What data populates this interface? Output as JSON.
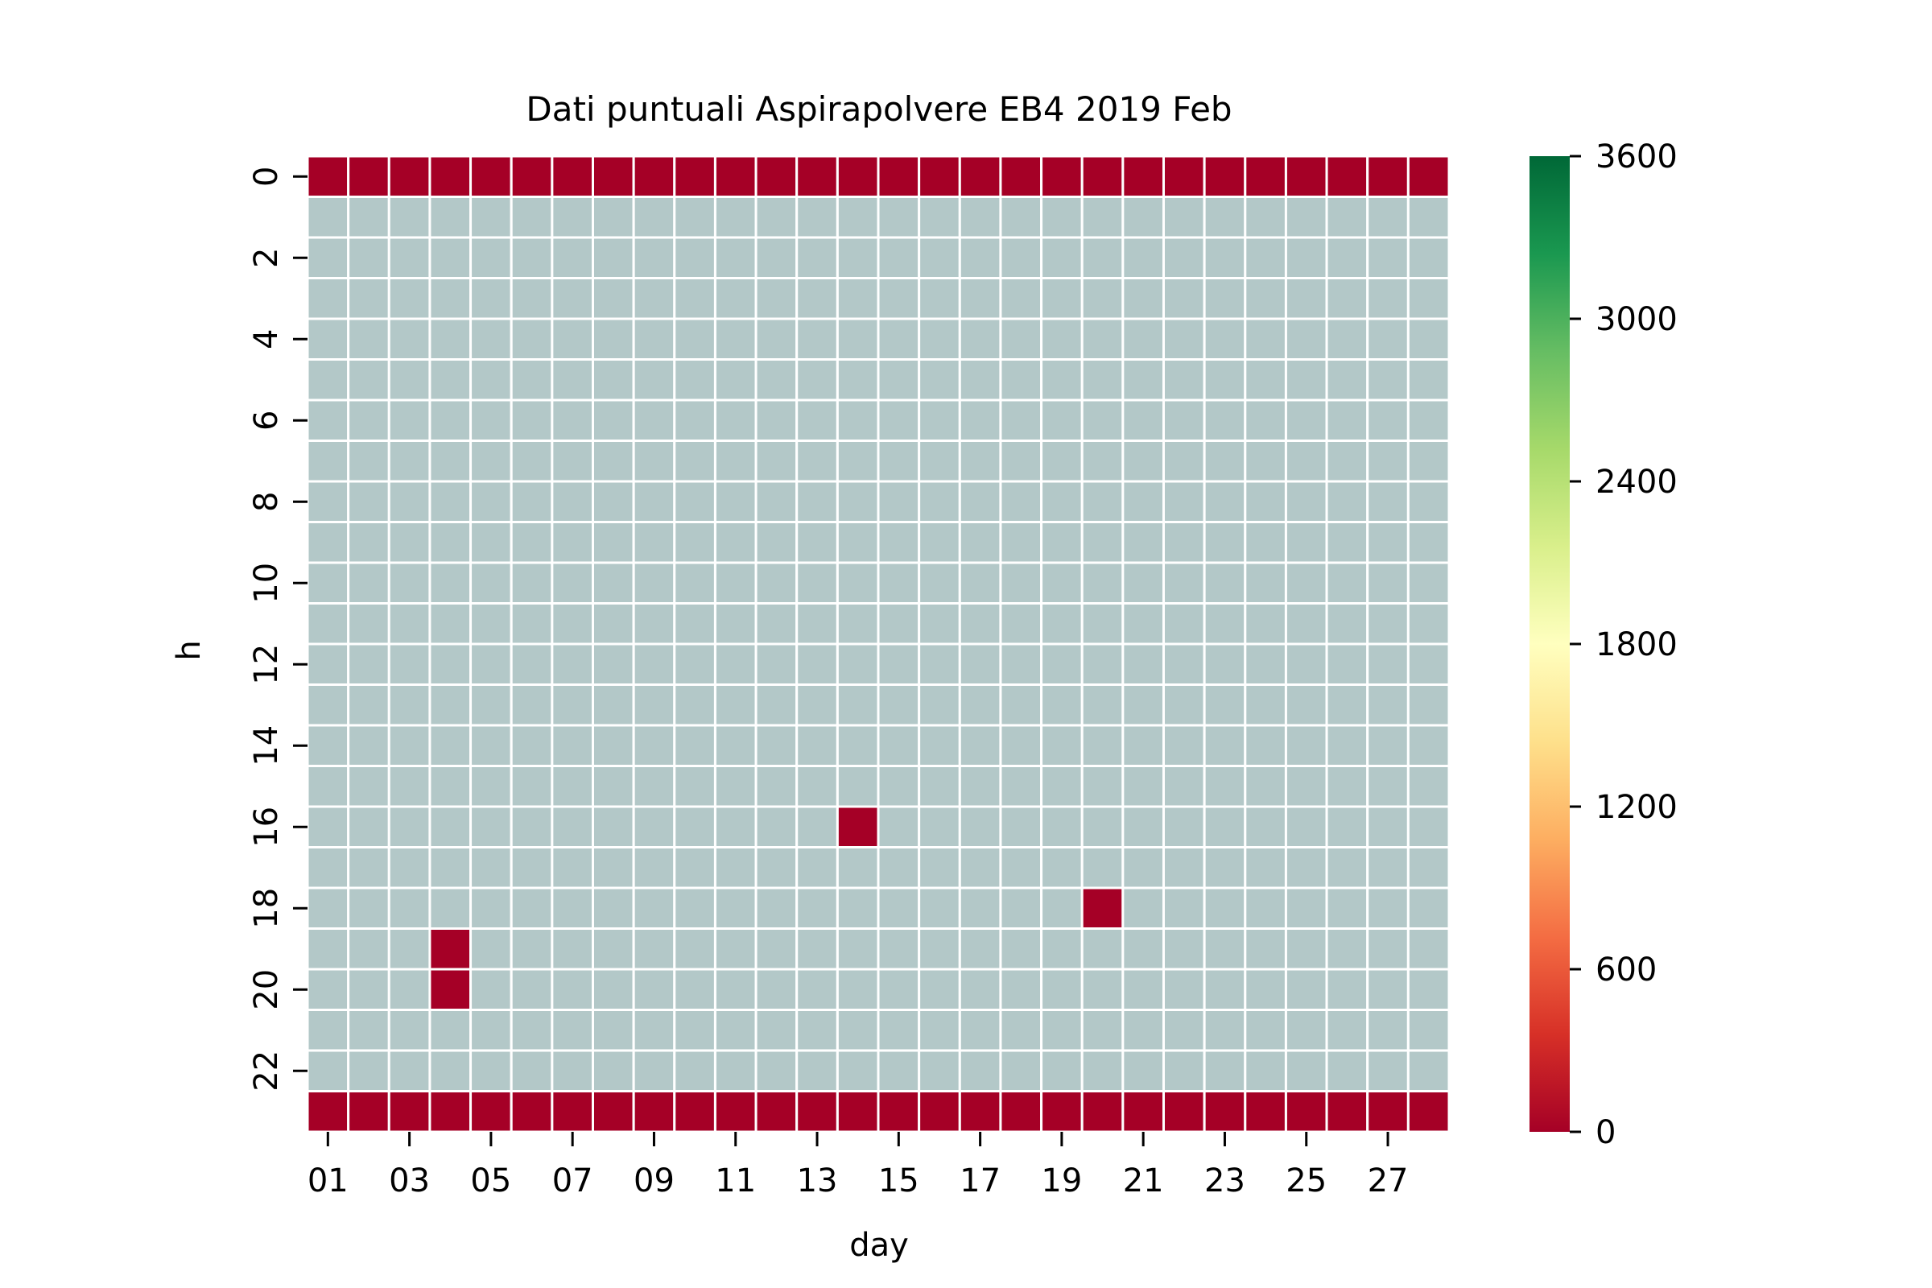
{
  "chart_data": {
    "type": "heatmap",
    "title": "Dati puntuali Aspirapolvere EB4 2019 Feb",
    "xlabel": "day",
    "ylabel": "h",
    "x_categories": [
      "01",
      "02",
      "03",
      "04",
      "05",
      "06",
      "07",
      "08",
      "09",
      "10",
      "11",
      "12",
      "13",
      "14",
      "15",
      "16",
      "17",
      "18",
      "19",
      "20",
      "21",
      "22",
      "23",
      "24",
      "25",
      "26",
      "27",
      "28"
    ],
    "x_tick_labels": [
      "01",
      "03",
      "05",
      "07",
      "09",
      "11",
      "13",
      "15",
      "17",
      "19",
      "21",
      "23",
      "25",
      "27"
    ],
    "y_categories": [
      "0",
      "1",
      "2",
      "3",
      "4",
      "5",
      "6",
      "7",
      "8",
      "9",
      "10",
      "11",
      "12",
      "13",
      "14",
      "15",
      "16",
      "17",
      "18",
      "19",
      "20",
      "21",
      "22",
      "23"
    ],
    "y_tick_labels": [
      "0",
      "2",
      "4",
      "6",
      "8",
      "10",
      "12",
      "14",
      "16",
      "18",
      "20",
      "22"
    ],
    "missing_color": "#b3c8c8",
    "grid_line_color": "#ffffff",
    "colormap": "RdYlGn",
    "colorbar": {
      "vmin": 0,
      "vmax": 3600,
      "tick_labels": [
        "0",
        "600",
        "1200",
        "1800",
        "2400",
        "3000",
        "3600"
      ],
      "stops": [
        "#a50026",
        "#d73027",
        "#f46d43",
        "#fdae61",
        "#fee08b",
        "#ffffbf",
        "#d9ef8b",
        "#a6d96a",
        "#66bd63",
        "#1a9850",
        "#006837"
      ]
    },
    "cells": [
      {
        "h": "0",
        "day": "01",
        "value": 0
      },
      {
        "h": "0",
        "day": "02",
        "value": 0
      },
      {
        "h": "0",
        "day": "03",
        "value": 0
      },
      {
        "h": "0",
        "day": "04",
        "value": 0
      },
      {
        "h": "0",
        "day": "05",
        "value": 0
      },
      {
        "h": "0",
        "day": "06",
        "value": 0
      },
      {
        "h": "0",
        "day": "07",
        "value": 0
      },
      {
        "h": "0",
        "day": "08",
        "value": 0
      },
      {
        "h": "0",
        "day": "09",
        "value": 0
      },
      {
        "h": "0",
        "day": "10",
        "value": 0
      },
      {
        "h": "0",
        "day": "11",
        "value": 0
      },
      {
        "h": "0",
        "day": "12",
        "value": 0
      },
      {
        "h": "0",
        "day": "13",
        "value": 0
      },
      {
        "h": "0",
        "day": "14",
        "value": 0
      },
      {
        "h": "0",
        "day": "15",
        "value": 0
      },
      {
        "h": "0",
        "day": "16",
        "value": 0
      },
      {
        "h": "0",
        "day": "17",
        "value": 0
      },
      {
        "h": "0",
        "day": "18",
        "value": 0
      },
      {
        "h": "0",
        "day": "19",
        "value": 0
      },
      {
        "h": "0",
        "day": "20",
        "value": 0
      },
      {
        "h": "0",
        "day": "21",
        "value": 0
      },
      {
        "h": "0",
        "day": "22",
        "value": 0
      },
      {
        "h": "0",
        "day": "23",
        "value": 0
      },
      {
        "h": "0",
        "day": "24",
        "value": 0
      },
      {
        "h": "0",
        "day": "25",
        "value": 0
      },
      {
        "h": "0",
        "day": "26",
        "value": 0
      },
      {
        "h": "0",
        "day": "27",
        "value": 0
      },
      {
        "h": "0",
        "day": "28",
        "value": 0
      },
      {
        "h": "23",
        "day": "01",
        "value": 0
      },
      {
        "h": "23",
        "day": "02",
        "value": 0
      },
      {
        "h": "23",
        "day": "03",
        "value": 0
      },
      {
        "h": "23",
        "day": "04",
        "value": 0
      },
      {
        "h": "23",
        "day": "05",
        "value": 0
      },
      {
        "h": "23",
        "day": "06",
        "value": 0
      },
      {
        "h": "23",
        "day": "07",
        "value": 0
      },
      {
        "h": "23",
        "day": "08",
        "value": 0
      },
      {
        "h": "23",
        "day": "09",
        "value": 0
      },
      {
        "h": "23",
        "day": "10",
        "value": 0
      },
      {
        "h": "23",
        "day": "11",
        "value": 0
      },
      {
        "h": "23",
        "day": "12",
        "value": 0
      },
      {
        "h": "23",
        "day": "13",
        "value": 0
      },
      {
        "h": "23",
        "day": "14",
        "value": 0
      },
      {
        "h": "23",
        "day": "15",
        "value": 0
      },
      {
        "h": "23",
        "day": "16",
        "value": 0
      },
      {
        "h": "23",
        "day": "17",
        "value": 0
      },
      {
        "h": "23",
        "day": "18",
        "value": 0
      },
      {
        "h": "23",
        "day": "19",
        "value": 0
      },
      {
        "h": "23",
        "day": "20",
        "value": 0
      },
      {
        "h": "23",
        "day": "21",
        "value": 0
      },
      {
        "h": "23",
        "day": "22",
        "value": 0
      },
      {
        "h": "23",
        "day": "23",
        "value": 0
      },
      {
        "h": "23",
        "day": "24",
        "value": 0
      },
      {
        "h": "23",
        "day": "25",
        "value": 0
      },
      {
        "h": "23",
        "day": "26",
        "value": 0
      },
      {
        "h": "23",
        "day": "27",
        "value": 0
      },
      {
        "h": "23",
        "day": "28",
        "value": 0
      },
      {
        "h": "16",
        "day": "14",
        "value": 0
      },
      {
        "h": "18",
        "day": "20",
        "value": 0
      },
      {
        "h": "19",
        "day": "04",
        "value": 0
      },
      {
        "h": "20",
        "day": "04",
        "value": 0
      }
    ]
  }
}
